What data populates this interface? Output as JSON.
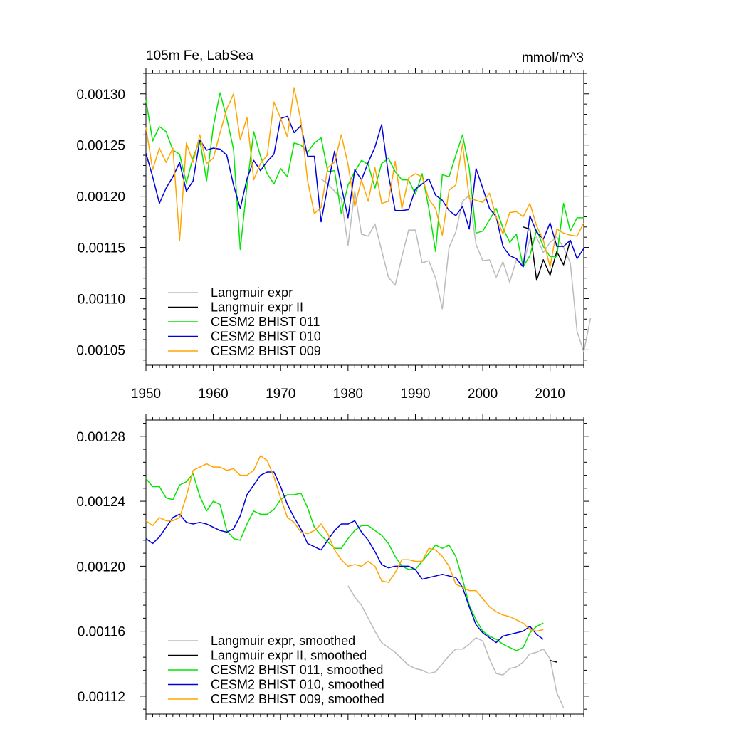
{
  "colors": {
    "gray": "#bbbbbb",
    "black": "#000000",
    "green": "#00e600",
    "blue": "#0000dd",
    "orange": "#ffa500"
  },
  "chart_data": [
    {
      "type": "line",
      "title": "105m Fe, LabSea",
      "units": "mmol/m^3",
      "xlim": [
        1950,
        2015
      ],
      "ylim": [
        0.001035,
        0.00132
      ],
      "xticks": [
        1950,
        1960,
        1970,
        1980,
        1990,
        2000,
        2010
      ],
      "xtick_labels": [
        "1950",
        "1960",
        "1970",
        "1980",
        "1990",
        "2000",
        "2010"
      ],
      "yticks": [
        0.00105,
        0.0011,
        0.00115,
        0.0012,
        0.00125,
        0.0013
      ],
      "ytick_labels": [
        "0.00105",
        "0.00110",
        "0.00115",
        "0.00120",
        "0.00125",
        "0.00130"
      ],
      "legend": [
        "Langmuir expr",
        "Langmuir expr II",
        "CESM2 BHIST 011",
        "CESM2 BHIST 010",
        "CESM2 BHIST 009"
      ],
      "legend_position": "bottom-left",
      "series": [
        {
          "name": "Langmuir expr",
          "color": "gray",
          "x_start": 1976,
          "values": [
            0.001217,
            0.001212,
            0.001205,
            0.001198,
            0.001152,
            0.001205,
            0.001163,
            0.001161,
            0.001173,
            0.001147,
            0.001121,
            0.001113,
            0.001141,
            0.001167,
            0.001167,
            0.001135,
            0.001137,
            0.00112,
            0.00109,
            0.00115,
            0.001165,
            0.001195,
            0.001201,
            0.001153,
            0.001137,
            0.001138,
            0.001121,
            0.001136,
            0.001116,
            0.001138,
            0.001133,
            0.001158,
            0.00116,
            0.001145,
            0.001155,
            0.00116,
            0.00115,
            0.001135,
            0.001068,
            0.001048,
            0.001081
          ]
        },
        {
          "name": "Langmuir expr II",
          "color": "black",
          "x_start": 2006,
          "values": [
            0.00117,
            0.001168,
            0.001118,
            0.001138,
            0.001123,
            0.001146,
            0.001133,
            0.001157
          ]
        },
        {
          "name": "CESM2 BHIST 011",
          "color": "green",
          "x_start": 1950,
          "values": [
            0.001294,
            0.001254,
            0.001268,
            0.001263,
            0.001245,
            0.001241,
            0.001213,
            0.001238,
            0.001255,
            0.001215,
            0.001268,
            0.001301,
            0.001276,
            0.001246,
            0.001148,
            0.00121,
            0.001263,
            0.001239,
            0.001222,
            0.001212,
            0.001227,
            0.001219,
            0.001252,
            0.00125,
            0.001243,
            0.001252,
            0.001257,
            0.001224,
            0.001225,
            0.001183,
            0.001211,
            0.001224,
            0.001235,
            0.001231,
            0.001208,
            0.001232,
            0.001237,
            0.001224,
            0.001216,
            0.001216,
            0.001202,
            0.001222,
            0.001188,
            0.001146,
            0.001221,
            0.001219,
            0.00124,
            0.00126,
            0.001227,
            0.001164,
            0.001166,
            0.001177,
            0.001188,
            0.001169,
            0.001155,
            0.001163,
            0.001131,
            0.001142,
            0.001167,
            0.001151,
            0.001141,
            0.001141,
            0.001193,
            0.001166,
            0.001179,
            0.001179
          ]
        },
        {
          "name": "CESM2 BHIST 010",
          "color": "blue",
          "x_start": 1950,
          "values": [
            0.001242,
            0.001219,
            0.001193,
            0.001208,
            0.001219,
            0.001233,
            0.001205,
            0.001215,
            0.001255,
            0.001245,
            0.001247,
            0.001246,
            0.00124,
            0.001211,
            0.001188,
            0.001217,
            0.001235,
            0.001225,
            0.001234,
            0.001241,
            0.001276,
            0.001278,
            0.001262,
            0.001269,
            0.001239,
            0.001239,
            0.001175,
            0.00121,
            0.001244,
            0.00121,
            0.001179,
            0.001226,
            0.001216,
            0.001233,
            0.001248,
            0.00127,
            0.001221,
            0.001186,
            0.001186,
            0.001187,
            0.001207,
            0.001212,
            0.001217,
            0.001201,
            0.001196,
            0.001186,
            0.001181,
            0.00119,
            0.001168,
            0.001227,
            0.001208,
            0.001188,
            0.00118,
            0.001151,
            0.001142,
            0.001139,
            0.001131,
            0.001181,
            0.001165,
            0.001158,
            0.001174,
            0.001151,
            0.001151,
            0.001157,
            0.001139,
            0.001149
          ]
        },
        {
          "name": "CESM2 BHIST 009",
          "color": "orange",
          "x_start": 1950,
          "values": [
            0.001267,
            0.001226,
            0.001247,
            0.001233,
            0.001247,
            0.001157,
            0.001252,
            0.001233,
            0.00126,
            0.001232,
            0.001237,
            0.001262,
            0.001285,
            0.0013,
            0.001255,
            0.001277,
            0.001216,
            0.001232,
            0.00124,
            0.001292,
            0.001276,
            0.001258,
            0.001306,
            0.001274,
            0.001215,
            0.001183,
            0.001189,
            0.001228,
            0.001233,
            0.00126,
            0.001231,
            0.00119,
            0.001216,
            0.001195,
            0.001228,
            0.001193,
            0.001195,
            0.001234,
            0.001188,
            0.001218,
            0.001222,
            0.001219,
            0.001197,
            0.001188,
            0.001162,
            0.001206,
            0.001211,
            0.001251,
            0.001198,
            0.001196,
            0.001194,
            0.001203,
            0.00118,
            0.001163,
            0.001184,
            0.001185,
            0.00118,
            0.001193,
            0.001171,
            0.001157,
            0.001131,
            0.001168,
            0.001164,
            0.001162,
            0.001161,
            0.001174
          ]
        }
      ]
    },
    {
      "type": "line",
      "xlim": [
        1950,
        2015
      ],
      "ylim": [
        0.001109,
        0.00129
      ],
      "xticks": [
        1950,
        1960,
        1970,
        1980,
        1990,
        2000,
        2010
      ],
      "yticks": [
        0.00112,
        0.00116,
        0.0012,
        0.00124,
        0.00128
      ],
      "ytick_labels": [
        "0.00112",
        "0.00116",
        "0.00120",
        "0.00124",
        "0.00128"
      ],
      "legend": [
        "Langmuir expr, smoothed",
        "Langmuir expr II, smoothed",
        "CESM2 BHIST 011, smoothed",
        "CESM2 BHIST 010, smoothed",
        "CESM2 BHIST 009, smoothed"
      ],
      "legend_position": "bottom-left",
      "series": [
        {
          "name": "Langmuir expr, smoothed",
          "color": "gray",
          "x_start": 1980,
          "values": [
            0.001188,
            0.001181,
            0.001176,
            0.001168,
            0.00116,
            0.001153,
            0.00115,
            0.001147,
            0.001143,
            0.001139,
            0.001137,
            0.001136,
            0.001134,
            0.001135,
            0.00114,
            0.001145,
            0.001149,
            0.001149,
            0.001152,
            0.001156,
            0.001154,
            0.001143,
            0.001134,
            0.001133,
            0.001137,
            0.001138,
            0.001141,
            0.001146,
            0.001147,
            0.001149,
            0.001143,
            0.001122,
            0.001113
          ]
        },
        {
          "name": "Langmuir expr II, smoothed",
          "color": "black",
          "x_start": 2010,
          "values": [
            0.001142,
            0.001141
          ]
        },
        {
          "name": "CESM2 BHIST 011, smoothed",
          "color": "green",
          "x_start": 1950,
          "values": [
            0.001254,
            0.001249,
            0.001249,
            0.001242,
            0.001241,
            0.00125,
            0.001252,
            0.001257,
            0.001243,
            0.001234,
            0.00124,
            0.001238,
            0.001222,
            0.001217,
            0.001216,
            0.001226,
            0.001234,
            0.001232,
            0.001232,
            0.001235,
            0.001241,
            0.001244,
            0.001244,
            0.001245,
            0.001236,
            0.001224,
            0.001219,
            0.001215,
            0.001211,
            0.001211,
            0.001217,
            0.001222,
            0.001225,
            0.001225,
            0.001222,
            0.001219,
            0.001214,
            0.001206,
            0.0012,
            0.001198,
            0.001198,
            0.001203,
            0.001208,
            0.001213,
            0.001211,
            0.001213,
            0.001206,
            0.001192,
            0.001176,
            0.001167,
            0.00116,
            0.001157,
            0.001155,
            0.001152,
            0.00115,
            0.001148,
            0.00115,
            0.001159,
            0.001163,
            0.001165
          ]
        },
        {
          "name": "CESM2 BHIST 010, smoothed",
          "color": "blue",
          "x_start": 1950,
          "values": [
            0.001217,
            0.001214,
            0.001218,
            0.001224,
            0.00123,
            0.001232,
            0.001227,
            0.001226,
            0.001227,
            0.001226,
            0.001224,
            0.001222,
            0.001221,
            0.001223,
            0.001231,
            0.001244,
            0.00125,
            0.001256,
            0.001258,
            0.001258,
            0.001249,
            0.001238,
            0.00123,
            0.001223,
            0.001214,
            0.001212,
            0.00121,
            0.001216,
            0.001222,
            0.001226,
            0.001226,
            0.001228,
            0.001221,
            0.001216,
            0.001209,
            0.001201,
            0.001199,
            0.0012,
            0.0012,
            0.0012,
            0.001198,
            0.001192,
            0.001193,
            0.001194,
            0.001195,
            0.001194,
            0.001193,
            0.001187,
            0.001175,
            0.001164,
            0.001159,
            0.001156,
            0.001153,
            0.001157,
            0.001158,
            0.001159,
            0.00116,
            0.001163,
            0.001158,
            0.001155
          ]
        },
        {
          "name": "CESM2 BHIST 009, smoothed",
          "color": "orange",
          "x_start": 1950,
          "values": [
            0.001228,
            0.001225,
            0.00123,
            0.001228,
            0.001228,
            0.00123,
            0.001243,
            0.001259,
            0.001261,
            0.001263,
            0.001261,
            0.001261,
            0.001259,
            0.00126,
            0.001256,
            0.001256,
            0.001259,
            0.001268,
            0.001265,
            0.001255,
            0.001242,
            0.00123,
            0.001227,
            0.001221,
            0.00122,
            0.001222,
            0.001226,
            0.00122,
            0.00121,
            0.001204,
            0.0012,
            0.001201,
            0.0012,
            0.001203,
            0.0012,
            0.001191,
            0.00119,
            0.001196,
            0.001204,
            0.001204,
            0.001203,
            0.001203,
            0.001211,
            0.00121,
            0.001206,
            0.0012,
            0.001189,
            0.001187,
            0.001185,
            0.001185,
            0.00118,
            0.001175,
            0.001172,
            0.00117,
            0.001169,
            0.001167,
            0.001165,
            0.001161,
            0.00116,
            0.001161
          ]
        }
      ]
    }
  ]
}
